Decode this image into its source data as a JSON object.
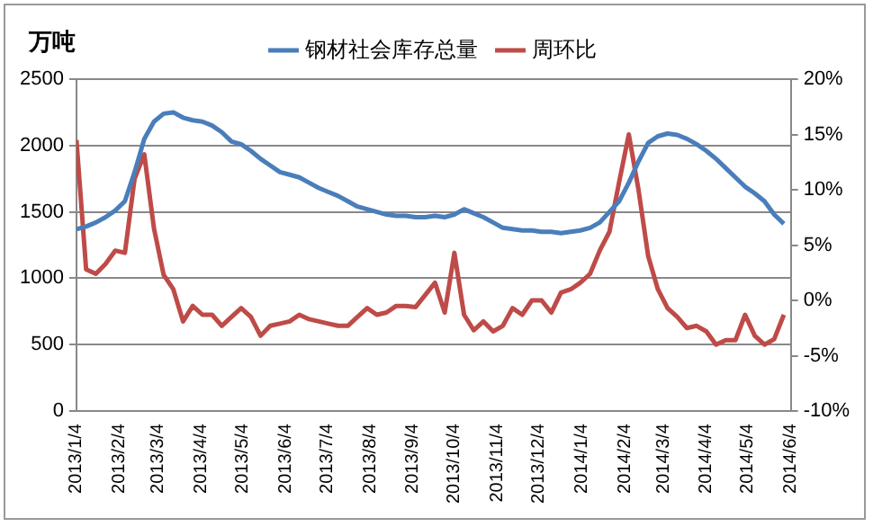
{
  "chart_data": {
    "type": "line",
    "ylabel": "万吨",
    "legend": "top",
    "grid": "y",
    "marker": "none",
    "line_style": "solid",
    "x": [
      "2013-01-04",
      "2013-01-11",
      "2013-01-18",
      "2013-01-25",
      "2013-02-01",
      "2013-02-08",
      "2013-02-15",
      "2013-02-22",
      "2013-03-01",
      "2013-03-08",
      "2013-03-15",
      "2013-03-22",
      "2013-03-29",
      "2013-04-05",
      "2013-04-12",
      "2013-04-19",
      "2013-04-26",
      "2013-05-03",
      "2013-05-10",
      "2013-05-17",
      "2013-05-24",
      "2013-05-31",
      "2013-06-07",
      "2013-06-14",
      "2013-06-21",
      "2013-06-28",
      "2013-07-05",
      "2013-07-12",
      "2013-07-19",
      "2013-07-26",
      "2013-08-02",
      "2013-08-09",
      "2013-08-16",
      "2013-08-23",
      "2013-08-30",
      "2013-09-06",
      "2013-09-13",
      "2013-09-20",
      "2013-09-27",
      "2013-10-04",
      "2013-10-11",
      "2013-10-18",
      "2013-10-25",
      "2013-11-01",
      "2013-11-08",
      "2013-11-15",
      "2013-11-22",
      "2013-11-29",
      "2013-12-06",
      "2013-12-13",
      "2013-12-20",
      "2013-12-27",
      "2014-01-03",
      "2014-01-10",
      "2014-01-17",
      "2014-01-24",
      "2014-01-31",
      "2014-02-07",
      "2014-02-14",
      "2014-02-21",
      "2014-02-28",
      "2014-03-07",
      "2014-03-14",
      "2014-03-21",
      "2014-03-28",
      "2014-04-04",
      "2014-04-11",
      "2014-04-18",
      "2014-04-25",
      "2014-05-02",
      "2014-05-09",
      "2014-05-16",
      "2014-05-23",
      "2014-05-30"
    ],
    "series": [
      {
        "name": "钢材社会库存总量",
        "color": "#4a7ebb",
        "values": [
          1370,
          1390,
          1420,
          1460,
          1510,
          1580,
          1800,
          2050,
          2180,
          2240,
          2250,
          2210,
          2190,
          2180,
          2150,
          2100,
          2030,
          2010,
          1960,
          1900,
          1850,
          1800,
          1780,
          1760,
          1720,
          1680,
          1650,
          1620,
          1580,
          1540,
          1520,
          1500,
          1480,
          1470,
          1470,
          1460,
          1460,
          1470,
          1460,
          1480,
          1520,
          1490,
          1460,
          1420,
          1380,
          1370,
          1360,
          1360,
          1350,
          1350,
          1340,
          1350,
          1360,
          1380,
          1420,
          1500,
          1580,
          1720,
          1880,
          2020,
          2070,
          2090,
          2080,
          2050,
          2010,
          1960,
          1900,
          1830,
          1760,
          1690,
          1640,
          1580,
          1480,
          1410
        ]
      },
      {
        "name": "周环比",
        "color": "#be4b48",
        "axis": "y2",
        "values": [
          14.5,
          2.8,
          2.4,
          3.3,
          4.5,
          4.3,
          11.0,
          13.2,
          6.5,
          2.3,
          1.0,
          -1.9,
          -0.5,
          -1.3,
          -1.3,
          -2.3,
          -1.5,
          -0.7,
          -1.5,
          -3.2,
          -2.3,
          -2.1,
          -1.9,
          -1.3,
          -1.7,
          -1.9,
          -2.1,
          -2.3,
          -2.3,
          -1.5,
          -0.7,
          -1.3,
          -1.1,
          -0.5,
          -0.5,
          -0.6,
          0.5,
          1.6,
          -1.1,
          4.3,
          -1.3,
          -2.7,
          -1.9,
          -2.8,
          -2.3,
          -0.7,
          -1.3,
          0,
          0,
          -1.1,
          0.7,
          1.0,
          1.6,
          2.4,
          4.5,
          6.2,
          10.7,
          15.0,
          10.0,
          4.0,
          1.0,
          -0.7,
          -1.5,
          -2.5,
          -2.3,
          -2.8,
          -4.0,
          -3.6,
          -3.6,
          -1.3,
          -3.2,
          -4.0,
          -3.5,
          -1.3
        ]
      }
    ],
    "xlim": [
      "2013-01-04",
      "2014-06-04"
    ],
    "xticks": [
      {
        "value": "2013-01-04",
        "label": "2013/1/4"
      },
      {
        "value": "2013-02-04",
        "label": "2013/2/4"
      },
      {
        "value": "2013-03-04",
        "label": "2013/3/4"
      },
      {
        "value": "2013-04-04",
        "label": "2013/4/4"
      },
      {
        "value": "2013-05-04",
        "label": "2013/5/4"
      },
      {
        "value": "2013-06-04",
        "label": "2013/6/4"
      },
      {
        "value": "2013-07-04",
        "label": "2013/7/4"
      },
      {
        "value": "2013-08-04",
        "label": "2013/8/4"
      },
      {
        "value": "2013-09-04",
        "label": "2013/9/4"
      },
      {
        "value": "2013-10-04",
        "label": "2013/10/4"
      },
      {
        "value": "2013-11-04",
        "label": "2013/11/4"
      },
      {
        "value": "2013-12-04",
        "label": "2013/12/4"
      },
      {
        "value": "2014-01-04",
        "label": "2014/1/4"
      },
      {
        "value": "2014-02-04",
        "label": "2014/2/4"
      },
      {
        "value": "2014-03-04",
        "label": "2014/3/4"
      },
      {
        "value": "2014-04-04",
        "label": "2014/4/4"
      },
      {
        "value": "2014-05-04",
        "label": "2014/5/4"
      },
      {
        "value": "2014-06-04",
        "label": "2014/6/4"
      }
    ],
    "ylim": [
      0,
      2500
    ],
    "yticks": [
      0,
      500,
      1000,
      1500,
      2000,
      2500
    ],
    "y2lim": [
      -10,
      20
    ],
    "y2ticks": [
      {
        "value": -10,
        "label": "-10%"
      },
      {
        "value": -5,
        "label": "-5%"
      },
      {
        "value": 0,
        "label": "0%"
      },
      {
        "value": 5,
        "label": "5%"
      },
      {
        "value": 10,
        "label": "10%"
      },
      {
        "value": 15,
        "label": "15%"
      },
      {
        "value": 20,
        "label": "20%"
      }
    ]
  }
}
